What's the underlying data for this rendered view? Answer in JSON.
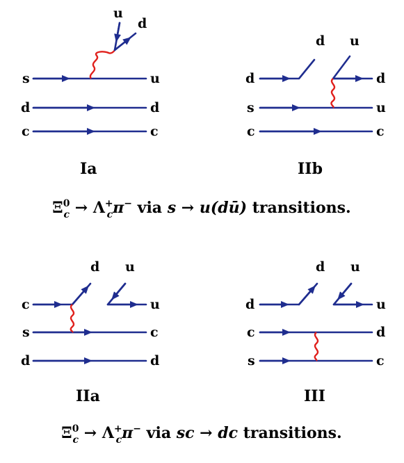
{
  "diagrams": {
    "Ia": {
      "caption": "Ia",
      "left_labels": [
        "s",
        "d",
        "c"
      ],
      "right_labels": [
        "u",
        "d",
        "c"
      ],
      "top_labels": [
        "u",
        "d"
      ]
    },
    "IIb": {
      "caption": "IIb",
      "left_labels": [
        "d",
        "s",
        "c"
      ],
      "right_labels": [
        "d",
        "u",
        "c"
      ],
      "top_labels": [
        "d",
        "u"
      ]
    },
    "IIa": {
      "caption": "IIa",
      "left_labels": [
        "c",
        "s",
        "d"
      ],
      "right_labels": [
        "u",
        "c",
        "d"
      ],
      "top_labels": [
        "d",
        "u"
      ]
    },
    "III": {
      "caption": "III",
      "left_labels": [
        "d",
        "c",
        "s"
      ],
      "right_labels": [
        "u",
        "d",
        "c"
      ],
      "top_labels": [
        "d",
        "u"
      ]
    }
  },
  "descriptions": {
    "top": {
      "xi": "Ξ",
      "xi_sup": "0",
      "xi_sub": "c",
      "arrow": " → ",
      "lambda": "Λ",
      "lambda_sup": "+",
      "lambda_sub": "c",
      "pi": "π",
      "pi_sup": "−",
      "via": " via ",
      "math": "s → u(dū)",
      "tail": " transitions."
    },
    "bottom": {
      "xi": "Ξ",
      "xi_sup": "0",
      "xi_sub": "c",
      "arrow": " → ",
      "lambda": "Λ",
      "lambda_sup": "+",
      "lambda_sub": "c",
      "pi": "π",
      "pi_sup": "−",
      "via": " via ",
      "math": "sc → dc",
      "tail": " transitions."
    }
  },
  "colors": {
    "quark_line": "#1f2d8f",
    "w_boson": "#e0201c",
    "text": "#000000"
  }
}
